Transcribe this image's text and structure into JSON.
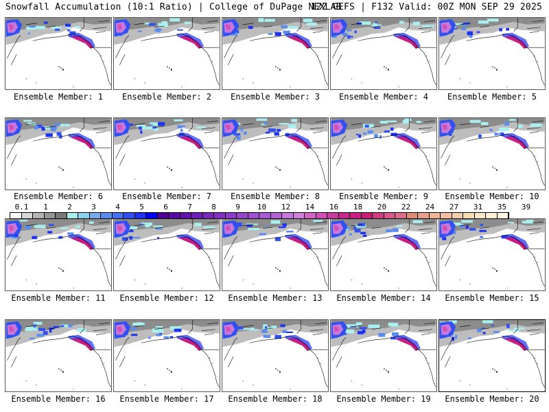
{
  "header": {
    "title_left": "Snowfall Accumulation (10:1 Ratio) | College of DuPage NEXLAB",
    "title_right": "12Z GEFS | F132 Valid: 00Z MON SEP 29 2025"
  },
  "panels": [
    {
      "label": "Ensemble Member: 1"
    },
    {
      "label": "Ensemble Member: 2"
    },
    {
      "label": "Ensemble Member: 3"
    },
    {
      "label": "Ensemble Member: 4"
    },
    {
      "label": "Ensemble Member: 5"
    },
    {
      "label": "Ensemble Member: 6"
    },
    {
      "label": "Ensemble Member: 7"
    },
    {
      "label": "Ensemble Member: 8"
    },
    {
      "label": "Ensemble Member: 9"
    },
    {
      "label": "Ensemble Member: 10"
    },
    {
      "label": "Ensemble Member: 11"
    },
    {
      "label": "Ensemble Member: 12"
    },
    {
      "label": "Ensemble Member: 13"
    },
    {
      "label": "Ensemble Member: 14"
    },
    {
      "label": "Ensemble Member: 15"
    },
    {
      "label": "Ensemble Member: 16"
    },
    {
      "label": "Ensemble Member: 17"
    },
    {
      "label": "Ensemble Member: 18"
    },
    {
      "label": "Ensemble Member: 19"
    },
    {
      "label": "Ensemble Member: 20"
    }
  ],
  "colorbar": {
    "labels": [
      "0.1",
      "1",
      "2",
      "3",
      "4",
      "5",
      "6",
      "7",
      "8",
      "9",
      "10",
      "12",
      "14",
      "16",
      "18",
      "20",
      "22",
      "24",
      "27",
      "31",
      "35",
      "39"
    ],
    "colors": [
      "#ffffff",
      "#d6d6d6",
      "#b4b4b4",
      "#969696",
      "#787878",
      "#aaf0f0",
      "#8cd2f0",
      "#78aaf0",
      "#5a8cf0",
      "#4670f0",
      "#3250f0",
      "#1e32f0",
      "#0000f0",
      "#500096",
      "#5a0aa0",
      "#6414aa",
      "#6e1eb4",
      "#7828b4",
      "#8232be",
      "#8c3cc8",
      "#9646c8",
      "#a050d2",
      "#aa5ad2",
      "#b464d2",
      "#c878dc",
      "#d282dc",
      "#d264c8",
      "#d250b4",
      "#c83ca0",
      "#c8288c",
      "#c81e82",
      "#c81e78",
      "#d03c82",
      "#d85a8c",
      "#dc6e8c",
      "#e08c78",
      "#e8a08c",
      "#f0b496",
      "#f0c0a0",
      "#f5cdaa",
      "#f8dcb4",
      "#fae6c8",
      "#fcf0d6",
      "#fff5e1"
    ]
  },
  "map": {
    "land_color": "#ffffff",
    "ocean_color": "#ffffff",
    "coast_color": "#000000"
  }
}
